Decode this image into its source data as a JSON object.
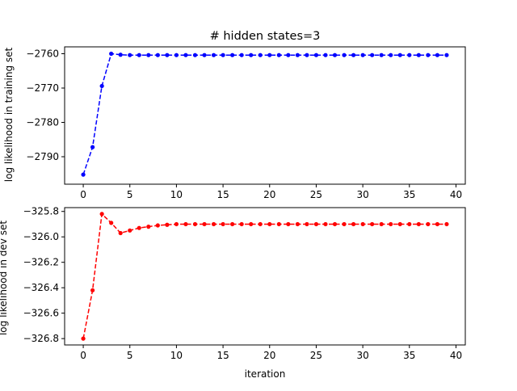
{
  "chart_data": [
    {
      "type": "line",
      "title": "# hidden states=3",
      "xlabel": "",
      "ylabel": "log likelihood in training set",
      "xlim": [
        -2,
        41
      ],
      "ylim": [
        -2798,
        -2758
      ],
      "xticks": [
        "0",
        "5",
        "10",
        "15",
        "20",
        "25",
        "30",
        "35",
        "40"
      ],
      "xtick_values": [
        0,
        5,
        10,
        15,
        20,
        25,
        30,
        35,
        40
      ],
      "yticks": [
        "−2790",
        "−2780",
        "−2770",
        "−2760"
      ],
      "ytick_values": [
        -2790,
        -2780,
        -2770,
        -2760
      ],
      "grid": false,
      "series": [
        {
          "color": "#0000ff",
          "style": "dashed-with-dots",
          "x": [
            0,
            1,
            2,
            3,
            4,
            5,
            6,
            7,
            8,
            9,
            10,
            11,
            12,
            13,
            14,
            15,
            16,
            17,
            18,
            19,
            20,
            21,
            22,
            23,
            24,
            25,
            26,
            27,
            28,
            29,
            30,
            31,
            32,
            33,
            34,
            35,
            36,
            37,
            38,
            39
          ],
          "y": [
            -2795.2,
            -2787.2,
            -2769.4,
            -2760,
            -2760.3,
            -2760.4,
            -2760.4,
            -2760.4,
            -2760.4,
            -2760.4,
            -2760.4,
            -2760.4,
            -2760.4,
            -2760.4,
            -2760.4,
            -2760.4,
            -2760.4,
            -2760.4,
            -2760.4,
            -2760.4,
            -2760.4,
            -2760.4,
            -2760.4,
            -2760.4,
            -2760.4,
            -2760.4,
            -2760.4,
            -2760.4,
            -2760.4,
            -2760.4,
            -2760.4,
            -2760.4,
            -2760.4,
            -2760.4,
            -2760.4,
            -2760.4,
            -2760.4,
            -2760.4,
            -2760.4,
            -2760.4
          ]
        }
      ]
    },
    {
      "type": "line",
      "title": "",
      "xlabel": "iteration",
      "ylabel": "log likelihood in dev set",
      "xlim": [
        -2,
        41
      ],
      "ylim": [
        -326.85,
        -325.77
      ],
      "xticks": [
        "0",
        "5",
        "10",
        "15",
        "20",
        "25",
        "30",
        "35",
        "40"
      ],
      "xtick_values": [
        0,
        5,
        10,
        15,
        20,
        25,
        30,
        35,
        40
      ],
      "yticks": [
        "−326.8",
        "−326.6",
        "−326.4",
        "−326.2",
        "−326.0",
        "−325.8"
      ],
      "ytick_values": [
        -326.8,
        -326.6,
        -326.4,
        -326.2,
        -326.0,
        -325.8
      ],
      "grid": false,
      "series": [
        {
          "color": "#ff0000",
          "style": "dashed-with-dots",
          "x": [
            0,
            1,
            2,
            3,
            4,
            5,
            6,
            7,
            8,
            9,
            10,
            11,
            12,
            13,
            14,
            15,
            16,
            17,
            18,
            19,
            20,
            21,
            22,
            23,
            24,
            25,
            26,
            27,
            28,
            29,
            30,
            31,
            32,
            33,
            34,
            35,
            36,
            37,
            38,
            39
          ],
          "y": [
            -326.8,
            -326.42,
            -325.82,
            -325.89,
            -325.97,
            -325.95,
            -325.93,
            -325.92,
            -325.91,
            -325.905,
            -325.9,
            -325.9,
            -325.9,
            -325.9,
            -325.9,
            -325.9,
            -325.9,
            -325.9,
            -325.9,
            -325.9,
            -325.9,
            -325.9,
            -325.9,
            -325.9,
            -325.9,
            -325.9,
            -325.9,
            -325.9,
            -325.9,
            -325.9,
            -325.9,
            -325.9,
            -325.9,
            -325.9,
            -325.9,
            -325.9,
            -325.9,
            -325.9,
            -325.9,
            -325.9
          ]
        }
      ]
    }
  ]
}
